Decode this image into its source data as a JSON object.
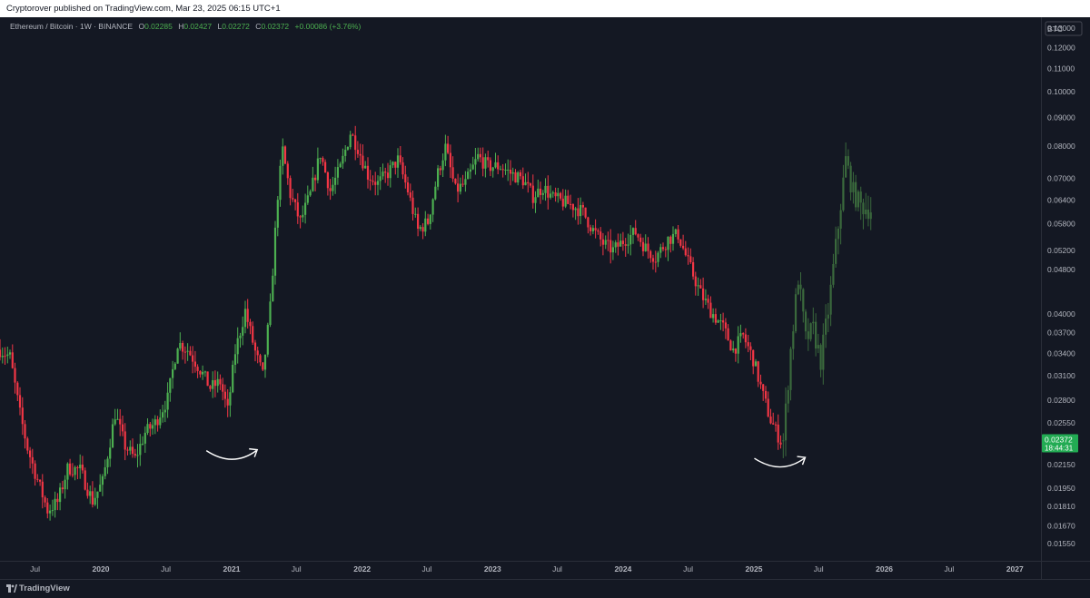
{
  "header": {
    "published_text": "Cryptorover published on TradingView.com, Mar 23, 2025 06:15 UTC+1"
  },
  "legend": {
    "symbol": "Ethereum / Bitcoin · 1W · BINANCE",
    "open_label": "O",
    "open": "0.02285",
    "high_label": "H",
    "high": "0.02427",
    "low_label": "L",
    "low": "0.02272",
    "close_label": "C",
    "close": "0.02372",
    "change": "+0.00086 (+3.76%)"
  },
  "price_scale": {
    "currency": "BTC",
    "last_price": "0.02372",
    "countdown": "18:44:31"
  },
  "footer": {
    "brand": "TradingView"
  },
  "colors": {
    "background": "#141823",
    "up": "#4caf50",
    "down": "#f23645",
    "projection": "#3d6e3e",
    "text": "#b2b5be"
  },
  "chart_data": {
    "type": "candlestick",
    "title": "Ethereum / Bitcoin · 1W · BINANCE",
    "y_scale": "log",
    "y_ticks": [
      0.13,
      0.12,
      0.11,
      0.1,
      0.09,
      0.08,
      0.07,
      0.064,
      0.058,
      0.052,
      0.048,
      0.04,
      0.037,
      0.034,
      0.031,
      0.028,
      0.0255,
      0.0215,
      0.0195,
      0.0181,
      0.0167,
      0.0155
    ],
    "y_tick_labels": [
      "0.13000",
      "0.12000",
      "0.11000",
      "0.10000",
      "0.09000",
      "0.08000",
      "0.07000",
      "0.06400",
      "0.05800",
      "0.05200",
      "0.04800",
      "0.04000",
      "0.03700",
      "0.03400",
      "0.03100",
      "0.02800",
      "0.02550",
      "0.02150",
      "0.01950",
      "0.01810",
      "0.01670",
      "0.01550"
    ],
    "x_ticks": [
      {
        "date": "2019-07-01",
        "label": "Jul"
      },
      {
        "date": "2020-01-01",
        "label": "2020"
      },
      {
        "date": "2020-07-01",
        "label": "Jul"
      },
      {
        "date": "2021-01-01",
        "label": "2021"
      },
      {
        "date": "2021-07-01",
        "label": "Jul"
      },
      {
        "date": "2022-01-01",
        "label": "2022"
      },
      {
        "date": "2022-07-01",
        "label": "Jul"
      },
      {
        "date": "2023-01-01",
        "label": "2023"
      },
      {
        "date": "2023-07-01",
        "label": "Jul"
      },
      {
        "date": "2024-01-01",
        "label": "2024"
      },
      {
        "date": "2024-07-01",
        "label": "Jul"
      },
      {
        "date": "2025-01-01",
        "label": "2025"
      },
      {
        "date": "2025-07-01",
        "label": "Jul"
      },
      {
        "date": "2026-01-01",
        "label": "2026"
      },
      {
        "date": "2026-07-01",
        "label": "Jul"
      },
      {
        "date": "2027-01-01",
        "label": "2027"
      }
    ],
    "x_range": [
      "2019-03-25",
      "2027-03-15"
    ],
    "y_range": [
      0.0145,
      0.136
    ],
    "historical_path": [
      [
        "2019-03-25",
        0.0345
      ],
      [
        "2019-04-22",
        0.0335
      ],
      [
        "2019-05-20",
        0.0265
      ],
      [
        "2019-06-10",
        0.023
      ],
      [
        "2019-07-01",
        0.0208
      ],
      [
        "2019-08-05",
        0.0178
      ],
      [
        "2019-09-02",
        0.0184
      ],
      [
        "2019-10-01",
        0.0212
      ],
      [
        "2019-11-04",
        0.021
      ],
      [
        "2019-12-09",
        0.0185
      ],
      [
        "2020-01-06",
        0.02
      ],
      [
        "2020-02-10",
        0.0265
      ],
      [
        "2020-03-09",
        0.0232
      ],
      [
        "2020-04-06",
        0.022
      ],
      [
        "2020-05-04",
        0.0245
      ],
      [
        "2020-06-01",
        0.0255
      ],
      [
        "2020-07-06",
        0.0282
      ],
      [
        "2020-08-03",
        0.0355
      ],
      [
        "2020-08-31",
        0.0345
      ],
      [
        "2020-10-05",
        0.0318
      ],
      [
        "2020-11-02",
        0.0295
      ],
      [
        "2020-11-30",
        0.0302
      ],
      [
        "2020-12-21",
        0.0268
      ],
      [
        "2021-01-11",
        0.0342
      ],
      [
        "2021-02-08",
        0.0405
      ],
      [
        "2021-03-08",
        0.0342
      ],
      [
        "2021-03-29",
        0.031
      ],
      [
        "2021-04-19",
        0.041
      ],
      [
        "2021-05-10",
        0.0655
      ],
      [
        "2021-05-24",
        0.0785
      ],
      [
        "2021-06-14",
        0.0655
      ],
      [
        "2021-07-12",
        0.0585
      ],
      [
        "2021-08-09",
        0.0655
      ],
      [
        "2021-09-06",
        0.0775
      ],
      [
        "2021-10-04",
        0.0665
      ],
      [
        "2021-11-01",
        0.073
      ],
      [
        "2021-11-29",
        0.0845
      ],
      [
        "2021-12-20",
        0.0795
      ],
      [
        "2022-01-17",
        0.071
      ],
      [
        "2022-02-14",
        0.0685
      ],
      [
        "2022-03-14",
        0.0715
      ],
      [
        "2022-04-11",
        0.0755
      ],
      [
        "2022-05-09",
        0.0665
      ],
      [
        "2022-06-06",
        0.0565
      ],
      [
        "2022-07-04",
        0.0585
      ],
      [
        "2022-08-01",
        0.0715
      ],
      [
        "2022-08-22",
        0.0795
      ],
      [
        "2022-09-19",
        0.0665
      ],
      [
        "2022-10-17",
        0.0685
      ],
      [
        "2022-11-21",
        0.0765
      ],
      [
        "2022-12-19",
        0.0735
      ],
      [
        "2023-01-23",
        0.0735
      ],
      [
        "2023-02-20",
        0.0715
      ],
      [
        "2023-03-27",
        0.0695
      ],
      [
        "2023-04-24",
        0.065
      ],
      [
        "2023-05-22",
        0.0675
      ],
      [
        "2023-06-19",
        0.0645
      ],
      [
        "2023-07-17",
        0.0635
      ],
      [
        "2023-08-14",
        0.0625
      ],
      [
        "2023-09-11",
        0.0608
      ],
      [
        "2023-10-09",
        0.0565
      ],
      [
        "2023-11-06",
        0.0535
      ],
      [
        "2023-12-04",
        0.052
      ],
      [
        "2024-01-08",
        0.0545
      ],
      [
        "2024-02-05",
        0.056
      ],
      [
        "2024-03-04",
        0.0525
      ],
      [
        "2024-04-01",
        0.0505
      ],
      [
        "2024-05-06",
        0.0545
      ],
      [
        "2024-06-03",
        0.0555
      ],
      [
        "2024-07-01",
        0.0495
      ],
      [
        "2024-08-05",
        0.0435
      ],
      [
        "2024-09-02",
        0.0405
      ],
      [
        "2024-10-07",
        0.0378
      ],
      [
        "2024-11-04",
        0.0345
      ],
      [
        "2024-12-02",
        0.0365
      ],
      [
        "2024-12-30",
        0.0332
      ],
      [
        "2025-01-27",
        0.0285
      ],
      [
        "2025-02-17",
        0.0258
      ],
      [
        "2025-03-17",
        0.0237
      ]
    ],
    "projection_path": [
      [
        "2025-03-24",
        0.0237
      ],
      [
        "2025-04-14",
        0.0345
      ],
      [
        "2025-05-05",
        0.0465
      ],
      [
        "2025-05-26",
        0.036
      ],
      [
        "2025-06-16",
        0.0375
      ],
      [
        "2025-07-07",
        0.033
      ],
      [
        "2025-07-28",
        0.0405
      ],
      [
        "2025-08-25",
        0.0575
      ],
      [
        "2025-09-15",
        0.0755
      ],
      [
        "2025-10-06",
        0.066
      ],
      [
        "2025-10-27",
        0.0625
      ],
      [
        "2025-11-24",
        0.0615
      ]
    ],
    "annotations": [
      {
        "type": "curved-arrow",
        "date": "2021-01-04",
        "price": 0.0225
      },
      {
        "type": "curved-arrow",
        "date": "2025-03-17",
        "price": 0.0218
      }
    ]
  }
}
